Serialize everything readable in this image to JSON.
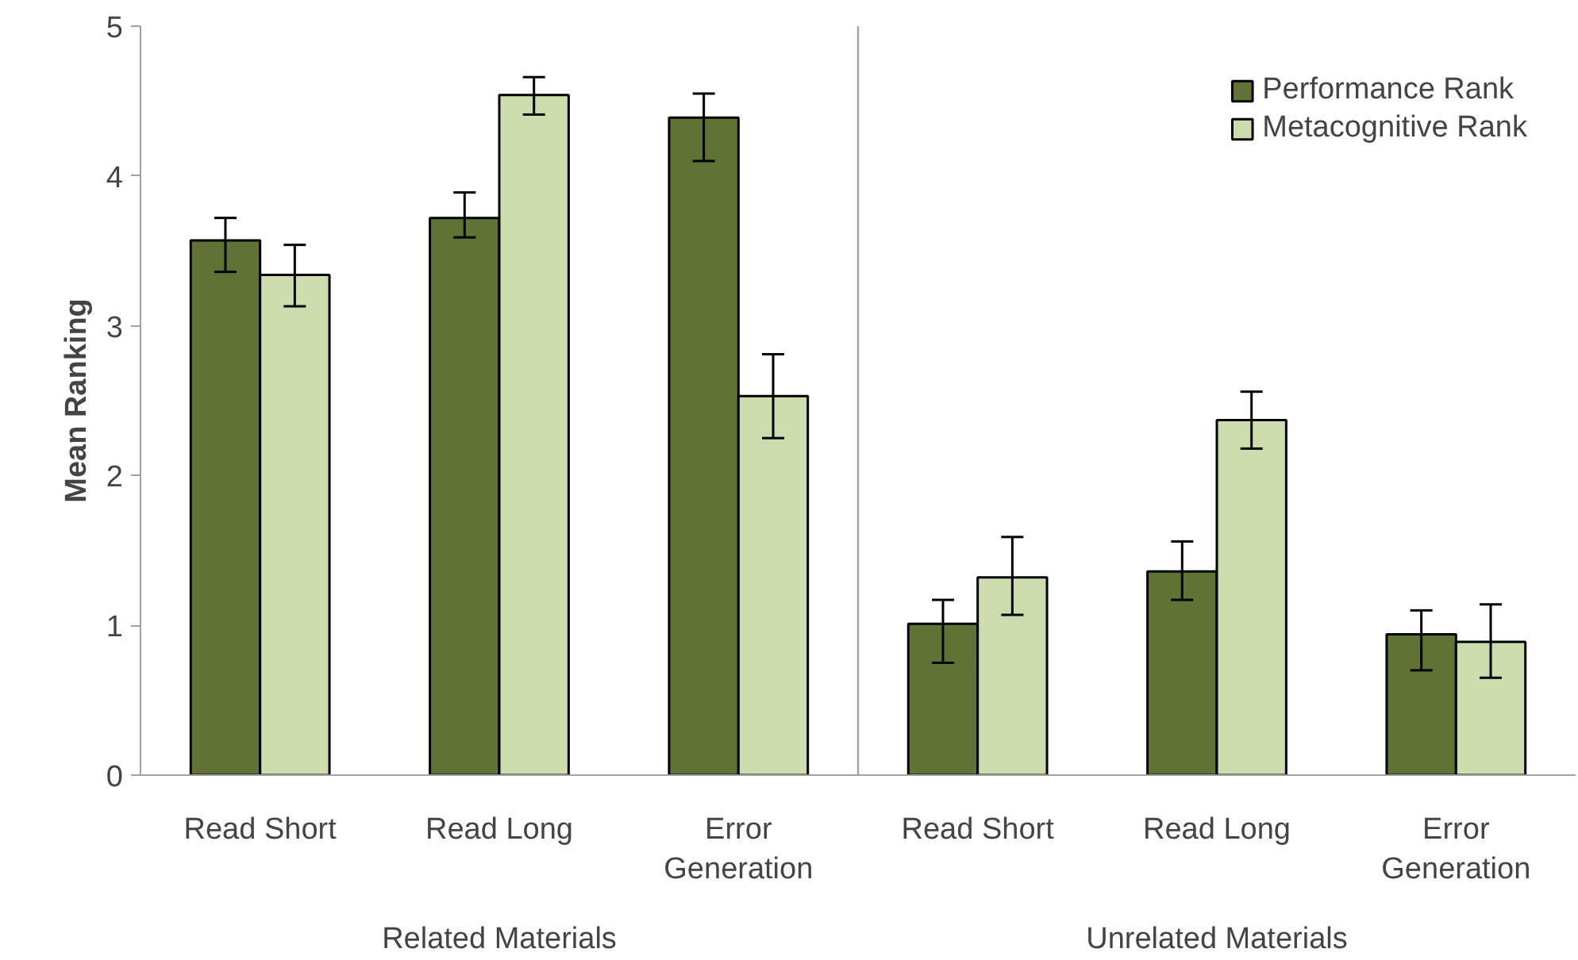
{
  "chart_data": {
    "type": "bar",
    "ylabel": "Mean Ranking",
    "categories": [
      "Read Short",
      "Read Long",
      "Error\nGeneration",
      "Read Short",
      "Read Long",
      "Error\nGeneration"
    ],
    "series": [
      {
        "name": "Performance Rank",
        "color": "#617334",
        "values": [
          3.57,
          3.72,
          4.39,
          1.01,
          1.36,
          0.94
        ],
        "errors": [
          [
            3.36,
            3.72
          ],
          [
            3.59,
            3.89
          ],
          [
            4.1,
            4.55
          ],
          [
            0.75,
            1.17
          ],
          [
            1.17,
            1.56
          ],
          [
            0.7,
            1.1
          ]
        ]
      },
      {
        "name": "Metacognitive Rank",
        "color": "#cddcac",
        "values": [
          3.34,
          4.54,
          2.53,
          1.32,
          2.37,
          0.89
        ],
        "errors": [
          [
            3.13,
            3.54
          ],
          [
            4.41,
            4.66
          ],
          [
            2.25,
            2.81
          ],
          [
            1.07,
            1.59
          ],
          [
            2.18,
            2.56
          ],
          [
            0.65,
            1.14
          ]
        ]
      }
    ],
    "annotations": [
      "Related Materials",
      "Unrelated Materials"
    ],
    "ylim": [
      0,
      5
    ],
    "yticks": [
      0,
      1,
      2,
      3,
      4,
      5
    ],
    "grid": false,
    "legend": "top right"
  }
}
